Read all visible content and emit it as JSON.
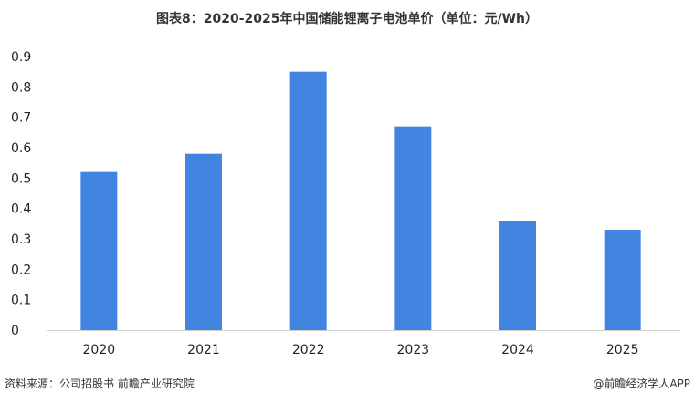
{
  "title": "图表8：2020-2025年中国储能锂离子电池单价（单位：元/Wh）",
  "source": "资料来源：公司招股书 前瞻产业研究院",
  "credit": "@前瞻经济学人APP",
  "chart_data": {
    "type": "bar",
    "title": "图表8：2020-2025年中国储能锂离子电池单价（单位：元/Wh）",
    "categories": [
      "2020",
      "2021",
      "2022",
      "2023",
      "2024",
      "2025"
    ],
    "values": [
      0.52,
      0.58,
      0.85,
      0.67,
      0.36,
      0.33
    ],
    "ylim": [
      0,
      0.9
    ],
    "yticks": [
      "0",
      "0.1",
      "0.2",
      "0.3",
      "0.4",
      "0.5",
      "0.6",
      "0.7",
      "0.8",
      "0.9"
    ],
    "grid": false,
    "bar_color": "#4285e0"
  }
}
